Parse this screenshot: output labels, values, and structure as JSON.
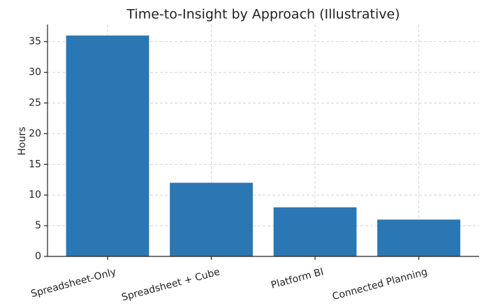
{
  "chart_data": {
    "type": "bar",
    "title": "Time-to-Insight by Approach (Illustrative)",
    "y_label": "Hours",
    "categories": [
      "Spreadsheet-Only",
      "Spreadsheet + Cube",
      "Platform BI",
      "Connected Planning"
    ],
    "values": [
      36,
      12,
      8,
      6
    ],
    "color": "#2a77b4",
    "ylim": [
      0,
      37.8
    ],
    "yticks": [
      0,
      5,
      10,
      15,
      20,
      25,
      30,
      35
    ],
    "grid": true
  }
}
